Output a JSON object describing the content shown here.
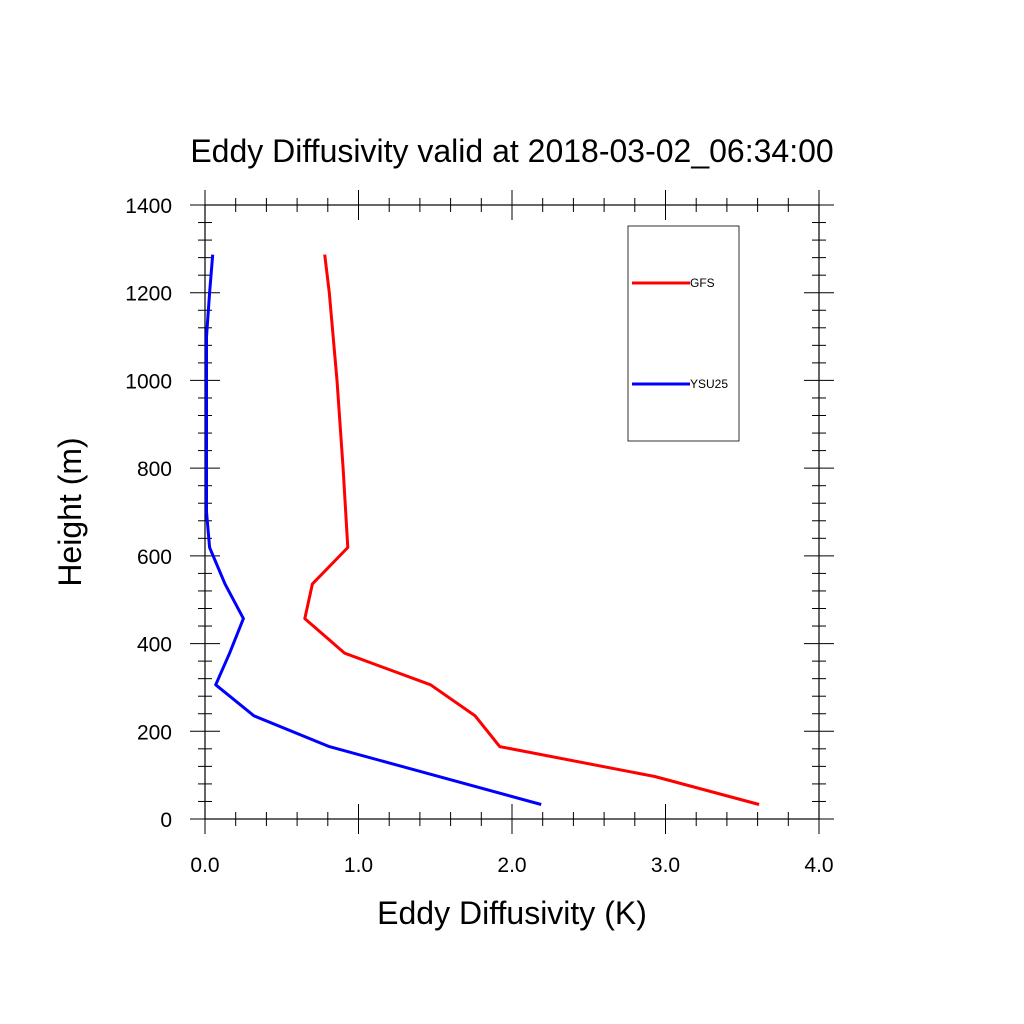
{
  "chart_data": {
    "type": "line",
    "title": "Eddy Diffusivity valid at 2018-03-02_06:34:00",
    "xlabel": "Eddy Diffusivity (K)",
    "ylabel": "Height (m)",
    "xlim": [
      0.0,
      4.0
    ],
    "ylim": [
      0,
      1400
    ],
    "x_ticks": [
      0.0,
      1.0,
      2.0,
      3.0,
      4.0
    ],
    "x_tick_labels": [
      "0.0",
      "1.0",
      "2.0",
      "3.0",
      "4.0"
    ],
    "y_ticks": [
      0,
      200,
      400,
      600,
      800,
      1000,
      1200,
      1400
    ],
    "y_tick_labels": [
      "0",
      "200",
      "400",
      "600",
      "800",
      "1000",
      "1200",
      "1400"
    ],
    "grid": false,
    "legend_position": "top-right",
    "series": [
      {
        "name": "GFS",
        "color": "#ff0000",
        "points": [
          {
            "x": 3.61,
            "y": 33
          },
          {
            "x": 2.93,
            "y": 97
          },
          {
            "x": 1.92,
            "y": 165
          },
          {
            "x": 1.76,
            "y": 235
          },
          {
            "x": 1.47,
            "y": 306
          },
          {
            "x": 0.91,
            "y": 378
          },
          {
            "x": 0.65,
            "y": 457
          },
          {
            "x": 0.7,
            "y": 536
          },
          {
            "x": 0.93,
            "y": 619
          },
          {
            "x": 0.9,
            "y": 800
          },
          {
            "x": 0.86,
            "y": 1000
          },
          {
            "x": 0.81,
            "y": 1200
          },
          {
            "x": 0.78,
            "y": 1287
          }
        ]
      },
      {
        "name": "YSU25",
        "color": "#0000ff",
        "points": [
          {
            "x": 2.19,
            "y": 33
          },
          {
            "x": 0.81,
            "y": 165
          },
          {
            "x": 0.32,
            "y": 235
          },
          {
            "x": 0.07,
            "y": 306
          },
          {
            "x": 0.16,
            "y": 378
          },
          {
            "x": 0.25,
            "y": 457
          },
          {
            "x": 0.13,
            "y": 536
          },
          {
            "x": 0.03,
            "y": 619
          },
          {
            "x": 0.01,
            "y": 700
          },
          {
            "x": 0.01,
            "y": 900
          },
          {
            "x": 0.01,
            "y": 1100
          },
          {
            "x": 0.03,
            "y": 1200
          },
          {
            "x": 0.05,
            "y": 1287
          }
        ]
      }
    ]
  }
}
